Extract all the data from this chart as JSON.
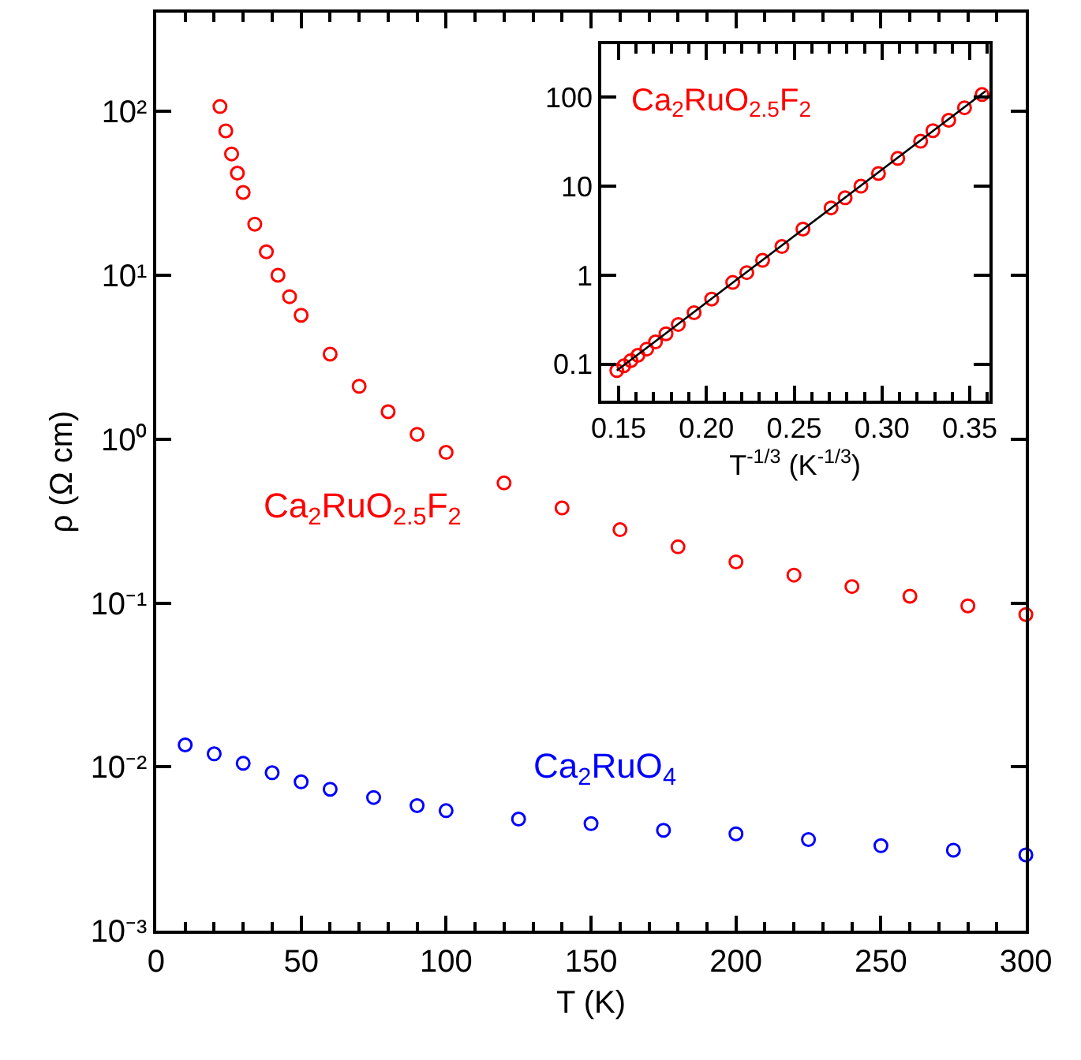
{
  "chart_data": [
    {
      "type": "scatter",
      "xlabel": "T (K)",
      "ylabel": "ρ (Ω cm)",
      "log": "y",
      "marker": "circle",
      "xlim": [
        0,
        300
      ],
      "xticks": [
        0,
        50,
        100,
        150,
        200,
        250,
        300
      ],
      "ylim": [
        0.001,
        400
      ],
      "yticks": [
        {
          "value": 0.001,
          "label": "10⁻³"
        },
        {
          "value": 0.01,
          "label": "10⁻²"
        },
        {
          "value": 0.1,
          "label": "10⁻¹"
        },
        {
          "value": 1,
          "label": "10⁰"
        },
        {
          "value": 10,
          "label": "10¹"
        },
        {
          "value": 100,
          "label": "10²"
        }
      ],
      "series": [
        {
          "name": "Ca$_{2}$RuO$_{2.5}$F$_{2}$",
          "color": "#ff0000",
          "x": [
            22,
            24,
            26,
            28,
            30,
            34,
            38,
            42,
            46,
            50,
            60,
            70,
            80,
            90,
            100,
            120,
            140,
            160,
            180,
            200,
            220,
            240,
            260,
            280,
            300
          ],
          "values": [
            107,
            76,
            55,
            42,
            32,
            20.5,
            13.9,
            10,
            7.4,
            5.7,
            3.3,
            2.1,
            1.47,
            1.07,
            0.83,
            0.54,
            0.38,
            0.28,
            0.22,
            0.178,
            0.148,
            0.126,
            0.11,
            0.096,
            0.085
          ]
        },
        {
          "name": "Ca$_{2}$RuO$_{4}$",
          "color": "#0000ff",
          "x": [
            10,
            20,
            30,
            40,
            50,
            60,
            75,
            90,
            100,
            125,
            150,
            175,
            200,
            225,
            250,
            275,
            300
          ],
          "values": [
            0.0136,
            0.012,
            0.0105,
            0.0092,
            0.0081,
            0.0073,
            0.0065,
            0.0058,
            0.0054,
            0.0048,
            0.0045,
            0.0041,
            0.0039,
            0.0036,
            0.0033,
            0.0031,
            0.0029
          ]
        }
      ]
    },
    {
      "type": "scatter",
      "xlabel": "T$^{-1/3}$ (K$^{-1/3}$)",
      "log": "y",
      "marker": "circle",
      "xlim": [
        0.14,
        0.361
      ],
      "xticks": [
        {
          "value": 0.15,
          "label": "0.15"
        },
        {
          "value": 0.2,
          "label": "0.20"
        },
        {
          "value": 0.25,
          "label": "0.25"
        },
        {
          "value": 0.3,
          "label": "0.30"
        },
        {
          "value": 0.35,
          "label": "0.35"
        }
      ],
      "ylim": [
        0.039,
        390
      ],
      "yticks": [
        0.1,
        1,
        10,
        100
      ],
      "series": [
        {
          "name": "Ca$_{2}$RuO$_{2.5}$F$_{2}$",
          "color": "#ff0000",
          "x": [
            0.357,
            0.347,
            0.338,
            0.329,
            0.322,
            0.309,
            0.298,
            0.288,
            0.279,
            0.271,
            0.255,
            0.243,
            0.232,
            0.223,
            0.215,
            0.203,
            0.193,
            0.184,
            0.177,
            0.171,
            0.166,
            0.161,
            0.157,
            0.153,
            0.149
          ],
          "values": [
            107,
            76,
            55,
            42,
            32,
            20.5,
            13.9,
            10,
            7.4,
            5.7,
            3.3,
            2.1,
            1.47,
            1.07,
            0.83,
            0.54,
            0.38,
            0.28,
            0.22,
            0.178,
            0.148,
            0.126,
            0.11,
            0.096,
            0.085
          ]
        },
        {
          "type": "line",
          "color": "#000000",
          "line_style": "solid",
          "marker": "none",
          "x": [
            0.149,
            0.359
          ],
          "values": [
            0.085,
            117
          ]
        }
      ]
    }
  ]
}
